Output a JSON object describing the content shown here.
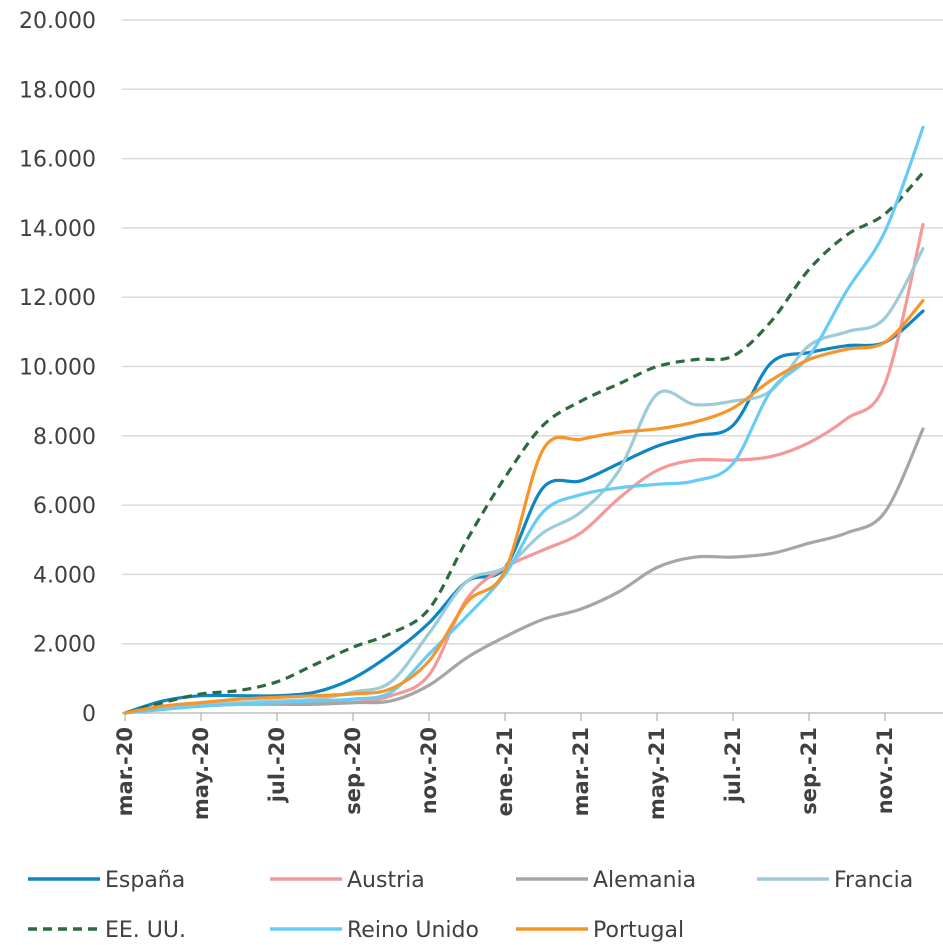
{
  "chart_data": {
    "type": "line",
    "title": "",
    "xlabel": "",
    "ylabel": "",
    "ylim": [
      0,
      20000
    ],
    "y_ticks": [
      "0",
      "2.000",
      "4.000",
      "6.000",
      "8.000",
      "10.000",
      "12.000",
      "14.000",
      "16.000",
      "18.000",
      "20.000"
    ],
    "x_start": "2020-03",
    "x_end": "2021-12",
    "x_tick_labels": [
      "mar.-20",
      "may.-20",
      "jul.-20",
      "sep.-20",
      "nov.-20",
      "ene.-21",
      "mar.-21",
      "may.-21",
      "jul.-21",
      "sep.-21",
      "nov.-21"
    ],
    "x_labels": [
      "2020-03",
      "2020-04",
      "2020-05",
      "2020-06",
      "2020-07",
      "2020-08",
      "2020-09",
      "2020-10",
      "2020-11",
      "2020-12",
      "2021-01",
      "2021-02",
      "2021-03",
      "2021-04",
      "2021-05",
      "2021-06",
      "2021-07",
      "2021-08",
      "2021-09",
      "2021-10",
      "2021-11",
      "2021-12"
    ],
    "grid": "horizontal",
    "legend_position": "bottom",
    "series": [
      {
        "name": "España",
        "color": "#0E86C4",
        "dash": "solid",
        "values": [
          0,
          350,
          500,
          500,
          500,
          600,
          1000,
          1700,
          2600,
          3800,
          4200,
          6500,
          6700,
          7200,
          7700,
          8000,
          8300,
          10100,
          10400,
          10600,
          10700,
          11600
        ]
      },
      {
        "name": "Austria",
        "color": "#F4999A",
        "dash": "solid",
        "values": [
          0,
          150,
          200,
          250,
          300,
          300,
          300,
          500,
          1100,
          3300,
          4200,
          4700,
          5200,
          6200,
          7000,
          7300,
          7300,
          7400,
          7800,
          8500,
          9500,
          14100
        ]
      },
      {
        "name": "Alemania",
        "color": "#A6A6A6",
        "dash": "solid",
        "values": [
          0,
          150,
          250,
          250,
          250,
          250,
          300,
          350,
          800,
          1600,
          2200,
          2700,
          3000,
          3500,
          4200,
          4500,
          4500,
          4600,
          4900,
          5200,
          5800,
          8200
        ]
      },
      {
        "name": "Francia",
        "color": "#9DCBD9",
        "dash": "solid",
        "values": [
          0,
          150,
          250,
          300,
          350,
          400,
          600,
          900,
          2300,
          3800,
          4200,
          5200,
          5800,
          7000,
          9200,
          8900,
          9000,
          9300,
          10600,
          11000,
          11400,
          13400
        ]
      },
      {
        "name": "EE. UU.",
        "color": "#2D6A3F",
        "dash": "dashed",
        "values": [
          0,
          300,
          550,
          650,
          900,
          1400,
          1900,
          2300,
          3000,
          5000,
          6800,
          8300,
          9000,
          9500,
          10000,
          10200,
          10300,
          11300,
          12800,
          13800,
          14400,
          15600
        ]
      },
      {
        "name": "Reino Unido",
        "color": "#66CCF5",
        "dash": "solid",
        "values": [
          0,
          100,
          200,
          250,
          300,
          350,
          400,
          600,
          1700,
          2800,
          4000,
          5800,
          6300,
          6500,
          6600,
          6700,
          7200,
          9300,
          10300,
          12200,
          13900,
          16900
        ]
      },
      {
        "name": "Portugal",
        "color": "#F6962A",
        "dash": "solid",
        "values": [
          0,
          200,
          300,
          400,
          450,
          500,
          550,
          700,
          1500,
          3200,
          4100,
          7600,
          7900,
          8100,
          8200,
          8400,
          8800,
          9600,
          10200,
          10500,
          10700,
          11900
        ]
      }
    ]
  }
}
